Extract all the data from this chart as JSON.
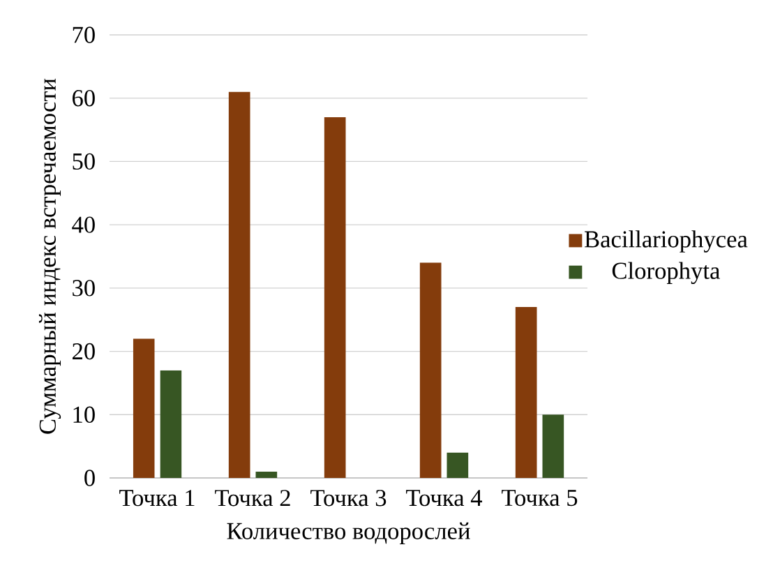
{
  "chart_data": {
    "type": "bar",
    "xlabel": "Количество водорослей",
    "ylabel": "Суммарный индекс встречаемости",
    "categories": [
      "Точка 1",
      "Точка 2",
      "Точка 3",
      "Точка 4",
      "Точка 5"
    ],
    "series": [
      {
        "name": "Bacillariophycea",
        "color": "#843c0c",
        "values": [
          22,
          61,
          57,
          34,
          27
        ]
      },
      {
        "name": "Clorophyta",
        "color": "#375623",
        "values": [
          17,
          1,
          null,
          4,
          10
        ]
      }
    ],
    "ylim": [
      0,
      70
    ],
    "yticks": [
      0,
      10,
      20,
      30,
      40,
      50,
      60,
      70
    ],
    "grid": "y",
    "legend": "right"
  }
}
